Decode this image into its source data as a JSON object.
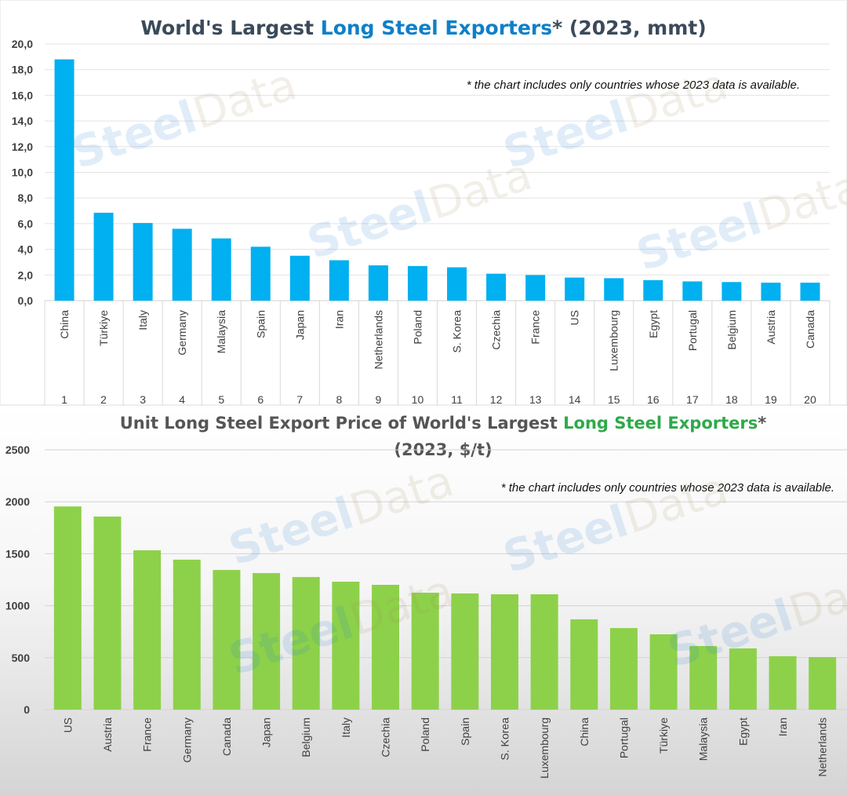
{
  "chart_data": [
    {
      "type": "bar",
      "title_parts": [
        "World's Largest ",
        "Long Steel Exporters",
        "* (2023, mmt)"
      ],
      "note": "* the chart includes only countries whose 2023 data is available.",
      "categories": [
        "China",
        "Türkiye",
        "Italy",
        "Germany",
        "Malaysia",
        "Spain",
        "Japan",
        "Iran",
        "Netherlands",
        "Poland",
        "S. Korea",
        "Czechia",
        "France",
        "US",
        "Luxembourg",
        "Egypt",
        "Portugal",
        "Belgium",
        "Austria",
        "Canada"
      ],
      "ranks": [
        "1",
        "2",
        "3",
        "4",
        "5",
        "6",
        "7",
        "8",
        "9",
        "10",
        "11",
        "12",
        "13",
        "14",
        "15",
        "16",
        "17",
        "18",
        "19",
        "20"
      ],
      "values": [
        18.8,
        6.85,
        6.05,
        5.6,
        4.85,
        4.2,
        3.5,
        3.15,
        2.75,
        2.7,
        2.6,
        2.1,
        2.0,
        1.8,
        1.75,
        1.6,
        1.5,
        1.45,
        1.4,
        1.4
      ],
      "yticks": [
        "0,0",
        "2,0",
        "4,0",
        "6,0",
        "8,0",
        "10,0",
        "12,0",
        "14,0",
        "16,0",
        "18,0",
        "20,0"
      ],
      "ylim": [
        0,
        20
      ],
      "grid": true,
      "bar_color": "#00b0f0",
      "accent_color": "#0f7fc8"
    },
    {
      "type": "bar",
      "title_parts": [
        "Unit Long Steel Export Price of World's Largest ",
        "Long Steel Exporters",
        "*"
      ],
      "title_line2": "(2023, $/t)",
      "note": "* the chart includes only countries whose 2023 data is available.",
      "categories": [
        "US",
        "Austria",
        "France",
        "Germany",
        "Canada",
        "Japan",
        "Belgium",
        "Italy",
        "Czechia",
        "Poland",
        "Spain",
        "S. Korea",
        "Luxembourg",
        "China",
        "Portugal",
        "Türkiye",
        "Malaysia",
        "Egypt",
        "Iran",
        "Netherlands"
      ],
      "values": [
        1955,
        1858,
        1533,
        1443,
        1344,
        1314,
        1276,
        1231,
        1201,
        1125,
        1118,
        1110,
        1110,
        869,
        785,
        725,
        612,
        589,
        514,
        506
      ],
      "yticks": [
        "0",
        "500",
        "1000",
        "1500",
        "2000",
        "2500"
      ],
      "ylim": [
        0,
        2500
      ],
      "grid": true,
      "bar_color": "#8dd14a",
      "accent_color": "#2eaa4a"
    }
  ],
  "watermark": [
    "Steel",
    "Data"
  ]
}
